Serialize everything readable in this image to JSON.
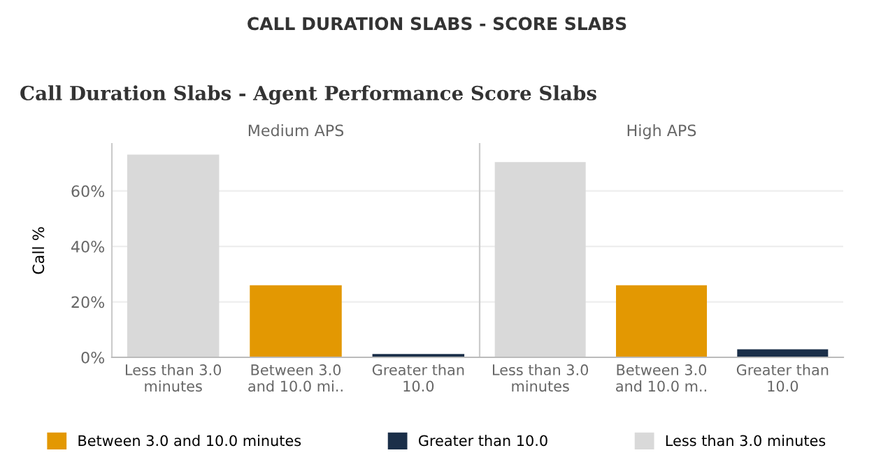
{
  "chart_data": [
    {
      "type": "bar",
      "title": "Medium APS",
      "ylabel": "Call %",
      "annotations": [
        "CALL DURATION SLABS - SCORE SLABS",
        "Call Duration Slabs - Agent Performance Score Slabs"
      ],
      "categories": [
        "Less than 3.0\nminutes",
        "Between 3.0\nand 10.0 mi..",
        "Greater than\n10.0"
      ],
      "series": [
        {
          "name": "Between 3.0 and 10.0 minutes",
          "color": "#e39802",
          "values": [
            null,
            26.0,
            null
          ]
        },
        {
          "name": "Greater than 10.0",
          "color": "#1b2f49",
          "values": [
            null,
            null,
            1.2
          ]
        },
        {
          "name": "Less than 3.0 minutes",
          "color": "#d9d9d9",
          "values": [
            73.1,
            null,
            null
          ]
        }
      ],
      "ylim": [
        0,
        77
      ],
      "yticks": [
        {
          "value": 0,
          "label": "0%"
        },
        {
          "value": 20,
          "label": "20%"
        },
        {
          "value": 40,
          "label": "40%"
        },
        {
          "value": 60,
          "label": "60%"
        }
      ],
      "grid": "y",
      "legend": "bottom"
    },
    {
      "type": "bar",
      "title": "High APS",
      "categories": [
        "Less than 3.0\nminutes",
        "Between 3.0\nand 10.0 m..",
        "Greater than\n10.0"
      ],
      "values": [
        70.4,
        26.0,
        2.9
      ],
      "colors": [
        "#d9d9d9",
        "#e39802",
        "#1b2f49"
      ],
      "ylim": [
        0,
        77
      ],
      "yticks": [
        0,
        20,
        40,
        60
      ],
      "grid": "y",
      "tick_labels": "x"
    }
  ]
}
